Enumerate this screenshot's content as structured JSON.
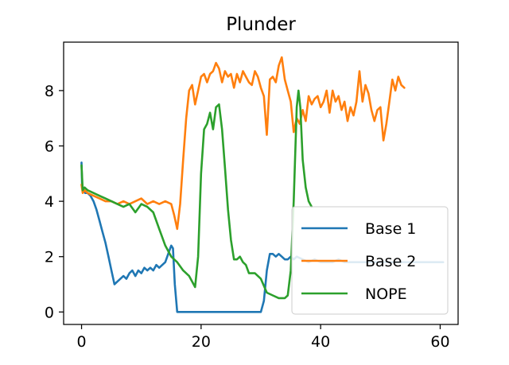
{
  "chart_data": {
    "type": "line",
    "title": "Plunder",
    "xlabel": "",
    "ylabel": "",
    "xlim": [
      -3,
      63
    ],
    "ylim": [
      -0.45,
      9.75
    ],
    "xticks": [
      0,
      20,
      40,
      60
    ],
    "yticks": [
      0,
      2,
      4,
      6,
      8
    ],
    "grid": false,
    "legend_position": "lower-right",
    "series": [
      {
        "name": "Base 1",
        "color": "#1f77b4",
        "x": [
          0,
          0.1,
          0.3,
          0.6,
          1,
          1.5,
          2,
          2.5,
          3,
          3.5,
          4,
          4.5,
          5,
          5.5,
          6,
          6.5,
          7,
          7.5,
          8,
          8.5,
          9,
          9.5,
          10,
          10.5,
          11,
          11.5,
          12,
          12.5,
          13,
          13.5,
          14,
          14.5,
          15,
          15.3,
          15.6,
          16,
          18,
          20,
          22,
          24,
          26,
          28,
          30,
          30.5,
          31,
          31.5,
          32,
          32.5,
          33,
          33.5,
          34,
          34.5,
          35,
          35.5,
          36,
          37,
          38,
          39,
          40,
          41,
          42,
          43,
          44,
          45,
          46,
          47,
          48,
          49,
          50,
          51,
          52,
          53,
          54,
          55,
          56,
          57,
          58,
          59,
          60,
          60.5
        ],
        "y": [
          5.4,
          4.5,
          4.4,
          4.3,
          4.3,
          4.2,
          4.0,
          3.7,
          3.3,
          2.9,
          2.5,
          2.0,
          1.5,
          1.0,
          1.1,
          1.2,
          1.3,
          1.2,
          1.4,
          1.5,
          1.3,
          1.5,
          1.4,
          1.6,
          1.5,
          1.6,
          1.5,
          1.7,
          1.6,
          1.7,
          1.8,
          2.1,
          2.4,
          2.3,
          1.0,
          0.0,
          0.0,
          0.0,
          0.0,
          0.0,
          0.0,
          0.0,
          0.0,
          0.4,
          1.5,
          2.1,
          2.1,
          2.0,
          2.1,
          2.0,
          1.9,
          1.9,
          2.0,
          1.9,
          2.0,
          1.9,
          1.8,
          1.9,
          1.8,
          1.8,
          1.8,
          1.9,
          1.8,
          1.8,
          1.8,
          1.8,
          1.8,
          1.8,
          1.8,
          1.8,
          1.8,
          1.8,
          1.8,
          1.8,
          1.8,
          1.8,
          1.8,
          1.8,
          1.8,
          1.8
        ]
      },
      {
        "name": "Base 2",
        "color": "#ff7f0e",
        "x": [
          0,
          0.2,
          0.5,
          1,
          2,
          3,
          4,
          5,
          6,
          7,
          8,
          9,
          10,
          11,
          12,
          13,
          14,
          15,
          15.5,
          16,
          16.5,
          17,
          17.5,
          18,
          18.5,
          19,
          19.5,
          20,
          20.5,
          21,
          21.5,
          22,
          22.5,
          23,
          23.5,
          24,
          24.5,
          25,
          25.5,
          26,
          26.5,
          27,
          27.5,
          28,
          28.5,
          29,
          29.5,
          30,
          30.5,
          31,
          31.5,
          32,
          32.5,
          33,
          33.5,
          34,
          34.5,
          35,
          35.5,
          36,
          36.5,
          37,
          37.5,
          38,
          38.5,
          39,
          39.5,
          40,
          40.5,
          41,
          41.5,
          42,
          42.5,
          43,
          43.5,
          44,
          44.5,
          45,
          45.5,
          46,
          46.5,
          47,
          47.5,
          48,
          48.5,
          49,
          49.5,
          50,
          50.5,
          51,
          51.5,
          52,
          52.5,
          53,
          53.5,
          54
        ],
        "y": [
          4.6,
          4.3,
          4.4,
          4.3,
          4.2,
          4.1,
          4.0,
          4.0,
          3.9,
          4.0,
          3.9,
          4.0,
          4.1,
          3.9,
          4.0,
          3.9,
          4.0,
          3.9,
          3.5,
          3.0,
          3.9,
          5.5,
          7.0,
          8.0,
          8.2,
          7.5,
          8.0,
          8.5,
          8.6,
          8.3,
          8.6,
          8.7,
          9.0,
          8.8,
          8.3,
          8.7,
          8.5,
          8.6,
          8.1,
          8.6,
          8.3,
          8.7,
          8.5,
          8.3,
          8.2,
          8.7,
          8.5,
          8.1,
          7.8,
          6.4,
          8.4,
          8.5,
          8.3,
          8.9,
          9.2,
          8.4,
          8.0,
          7.6,
          6.5,
          7.0,
          6.8,
          7.3,
          6.9,
          7.8,
          7.5,
          7.7,
          7.8,
          7.4,
          7.6,
          8.0,
          7.2,
          8.0,
          7.6,
          7.8,
          7.3,
          7.6,
          6.9,
          7.4,
          7.1,
          7.6,
          8.7,
          7.6,
          8.2,
          7.9,
          7.3,
          6.9,
          7.3,
          7.4,
          6.2,
          6.8,
          7.6,
          8.4,
          8.0,
          8.5,
          8.2,
          8.1
        ],
        "_note": ""
      },
      {
        "name": "NOPE",
        "color": "#2ca02c",
        "x": [
          0,
          0.2,
          0.5,
          1,
          2,
          3,
          4,
          5,
          6,
          7,
          8,
          9,
          10,
          11,
          12,
          13,
          14,
          15,
          16,
          17,
          18,
          18.5,
          19,
          19.5,
          20,
          20.5,
          21,
          21.5,
          22,
          22.5,
          23,
          23.5,
          24,
          24.5,
          25,
          25.5,
          26,
          26.5,
          27,
          27.5,
          28,
          29,
          30,
          31,
          32,
          33,
          34,
          34.5,
          35,
          35.5,
          36,
          36.3,
          36.6,
          37,
          37.5,
          38,
          38.5
        ],
        "y": [
          5.3,
          4.4,
          4.5,
          4.4,
          4.3,
          4.2,
          4.1,
          4.0,
          3.9,
          3.8,
          3.9,
          3.6,
          3.9,
          3.8,
          3.6,
          3.0,
          2.4,
          2.0,
          1.8,
          1.5,
          1.3,
          1.1,
          0.9,
          2.0,
          5.0,
          6.6,
          6.8,
          7.2,
          6.6,
          7.4,
          7.5,
          6.6,
          5.2,
          3.7,
          2.6,
          1.9,
          1.9,
          2.0,
          1.8,
          1.7,
          1.4,
          1.4,
          1.2,
          0.7,
          0.6,
          0.5,
          0.5,
          0.6,
          1.5,
          4.0,
          7.4,
          8.0,
          7.4,
          5.5,
          4.5,
          4.0,
          3.8
        ]
      }
    ]
  }
}
